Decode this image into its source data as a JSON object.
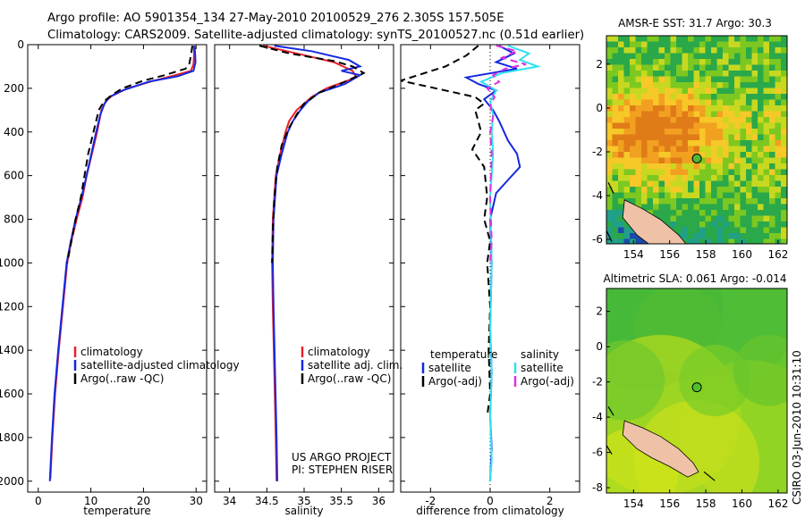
{
  "header": {
    "line1": "Argo profile: AO 5901354_134 27-May-2010 20100529_276 2.305S 157.505E",
    "line2": "Climatology: CARS2009. Satellite-adjusted climatology: synTS_20100527.nc (0.51d earlier)"
  },
  "side_caption": "CSIRO 03-Jun-2010 10:31:10",
  "colors": {
    "climatology": "#e8202a",
    "satellite": "#1428e0",
    "argo": "#000000",
    "cyan": "#30e0f0",
    "magenta": "#e030e0",
    "land": "#efc2a8"
  },
  "chart_data": [
    {
      "id": "temperature",
      "type": "line",
      "xlabel": "temperature",
      "xlim": [
        -2,
        32
      ],
      "ylim": [
        0,
        2050
      ],
      "y_inverted": true,
      "xticks": [
        0,
        10,
        20,
        30
      ],
      "yticks": [
        0,
        200,
        400,
        600,
        800,
        1000,
        1200,
        1400,
        1600,
        1800,
        2000
      ],
      "legend": [
        "climatology",
        "satellite-adjusted climatology",
        "Argo(..raw -QC)"
      ],
      "series": [
        {
          "name": "climatology",
          "color": "#e8202a",
          "dash": "",
          "points": [
            [
              29.6,
              5
            ],
            [
              29.6,
              50
            ],
            [
              29.5,
              90
            ],
            [
              29.0,
              120
            ],
            [
              26,
              140
            ],
            [
              22,
              165
            ],
            [
              17,
              200
            ],
            [
              14,
              235
            ],
            [
              12.8,
              260
            ],
            [
              12,
              300
            ],
            [
              11.2,
              400
            ],
            [
              10.2,
              500
            ],
            [
              9.2,
              600
            ],
            [
              8.4,
              700
            ],
            [
              7.3,
              800
            ],
            [
              6.3,
              900
            ],
            [
              5.5,
              1000
            ],
            [
              4.7,
              1200
            ],
            [
              3.9,
              1400
            ],
            [
              3.2,
              1600
            ],
            [
              2.7,
              1800
            ],
            [
              2.3,
              1990
            ]
          ]
        },
        {
          "name": "satellite-adjusted climatology",
          "color": "#1428e0",
          "dash": "",
          "points": [
            [
              29.7,
              5
            ],
            [
              29.8,
              40
            ],
            [
              29.9,
              80
            ],
            [
              29.5,
              120
            ],
            [
              26.5,
              145
            ],
            [
              21,
              170
            ],
            [
              16,
              210
            ],
            [
              13.5,
              240
            ],
            [
              12.6,
              270
            ],
            [
              11.8,
              320
            ],
            [
              11,
              400
            ],
            [
              10,
              510
            ],
            [
              9,
              620
            ],
            [
              8.2,
              700
            ],
            [
              7.1,
              800
            ],
            [
              6.2,
              900
            ],
            [
              5.4,
              1000
            ],
            [
              4.6,
              1200
            ],
            [
              3.8,
              1400
            ],
            [
              3.1,
              1600
            ],
            [
              2.6,
              1800
            ],
            [
              2.2,
              2000
            ]
          ]
        },
        {
          "name": "Argo(..raw -QC)",
          "color": "#000000",
          "dash": "8 5",
          "points": [
            [
              29.3,
              5
            ],
            [
              29.0,
              50
            ],
            [
              28.7,
              90
            ],
            [
              28.0,
              110
            ],
            [
              24,
              140
            ],
            [
              20,
              165
            ],
            [
              16,
              200
            ],
            [
              14,
              230
            ],
            [
              12.5,
              260
            ],
            [
              11.5,
              300
            ],
            [
              10.5,
              400
            ],
            [
              9.5,
              500
            ],
            [
              8.8,
              600
            ],
            [
              8.1,
              700
            ],
            [
              7.1,
              800
            ],
            [
              6.3,
              900
            ],
            [
              5.5,
              1000
            ]
          ]
        }
      ]
    },
    {
      "id": "salinity",
      "type": "line",
      "xlabel": "salinity",
      "xlim": [
        33.8,
        36.2
      ],
      "ylim": [
        0,
        2050
      ],
      "y_inverted": true,
      "xticks": [
        34,
        34.5,
        35,
        35.5,
        36
      ],
      "legend": [
        "climatology",
        "satellite adj. clim.",
        "Argo(..raw -QC)"
      ],
      "annotation": [
        "US ARGO PROJECT",
        "PI: STEPHEN RISER"
      ],
      "series": [
        {
          "name": "climatology",
          "color": "#e8202a",
          "dash": "",
          "points": [
            [
              34.45,
              5
            ],
            [
              34.9,
              40
            ],
            [
              35.4,
              80
            ],
            [
              35.65,
              120
            ],
            [
              35.7,
              150
            ],
            [
              35.3,
              200
            ],
            [
              35.1,
              240
            ],
            [
              35.0,
              270
            ],
            [
              34.9,
              300
            ],
            [
              34.8,
              350
            ],
            [
              34.75,
              400
            ],
            [
              34.68,
              500
            ],
            [
              34.62,
              600
            ],
            [
              34.58,
              800
            ],
            [
              34.57,
              1000
            ],
            [
              34.58,
              1200
            ],
            [
              34.6,
              1500
            ],
            [
              34.62,
              1800
            ],
            [
              34.63,
              2000
            ]
          ]
        },
        {
          "name": "satellite adj. clim.",
          "color": "#1428e0",
          "dash": "",
          "points": [
            [
              34.6,
              5
            ],
            [
              35.1,
              30
            ],
            [
              35.6,
              70
            ],
            [
              35.75,
              100
            ],
            [
              35.5,
              120
            ],
            [
              35.75,
              140
            ],
            [
              35.55,
              180
            ],
            [
              35.2,
              220
            ],
            [
              35.05,
              260
            ],
            [
              34.95,
              300
            ],
            [
              34.85,
              350
            ],
            [
              34.78,
              400
            ],
            [
              34.7,
              500
            ],
            [
              34.63,
              600
            ],
            [
              34.59,
              800
            ],
            [
              34.58,
              1000
            ],
            [
              34.59,
              1200
            ],
            [
              34.61,
              1500
            ],
            [
              34.63,
              1800
            ],
            [
              34.64,
              2000
            ]
          ]
        },
        {
          "name": "Argo(..raw -QC)",
          "color": "#000000",
          "dash": "8 5",
          "points": [
            [
              34.4,
              5
            ],
            [
              34.8,
              40
            ],
            [
              35.4,
              75
            ],
            [
              35.65,
              100
            ],
            [
              35.8,
              130
            ],
            [
              35.55,
              170
            ],
            [
              35.2,
              220
            ],
            [
              35.0,
              270
            ],
            [
              34.9,
              320
            ],
            [
              34.8,
              380
            ],
            [
              34.7,
              460
            ],
            [
              34.64,
              560
            ],
            [
              34.6,
              700
            ],
            [
              34.58,
              850
            ],
            [
              34.57,
              1000
            ]
          ]
        }
      ]
    },
    {
      "id": "difference",
      "type": "line",
      "xlabel": "difference from climatology",
      "xlim": [
        -3,
        3
      ],
      "ylim": [
        0,
        2050
      ],
      "y_inverted": true,
      "xticks": [
        -2,
        0,
        2
      ],
      "legend_left_title": "temperature",
      "legend_right_title": "salinity",
      "legend": [
        "satellite",
        "Argo(-adj)",
        "satellite",
        "Argo(-adj)"
      ],
      "series": [
        {
          "name": "satellite",
          "color": "#1428e0",
          "dash": "",
          "points": [
            [
              0.3,
              5
            ],
            [
              0.8,
              40
            ],
            [
              0.2,
              80
            ],
            [
              0.9,
              110
            ],
            [
              -0.8,
              150
            ],
            [
              -0.4,
              180
            ],
            [
              0.2,
              210
            ],
            [
              -0.2,
              250
            ],
            [
              0.1,
              300
            ],
            [
              0.3,
              350
            ],
            [
              0.6,
              440
            ],
            [
              0.9,
              500
            ],
            [
              1.0,
              560
            ],
            [
              0.6,
              620
            ],
            [
              0.2,
              680
            ],
            [
              0.0,
              800
            ],
            [
              0.05,
              1000
            ],
            [
              0.0,
              1300
            ],
            [
              0.05,
              1500
            ],
            [
              0.0,
              1700
            ],
            [
              0.05,
              1850
            ],
            [
              0.0,
              2000
            ]
          ]
        },
        {
          "name": "Argo(-adj)",
          "color": "#000000",
          "dash": "8 5",
          "points": [
            [
              -0.4,
              5
            ],
            [
              -0.8,
              50
            ],
            [
              -1.5,
              100
            ],
            [
              -3.0,
              165
            ],
            [
              -1.5,
              210
            ],
            [
              -0.5,
              240
            ],
            [
              -0.2,
              270
            ],
            [
              -0.5,
              300
            ],
            [
              -0.3,
              400
            ],
            [
              -0.6,
              480
            ],
            [
              -0.2,
              560
            ],
            [
              -0.1,
              700
            ],
            [
              -0.2,
              800
            ],
            [
              0.0,
              900
            ],
            [
              -0.1,
              1000
            ],
            [
              0.0,
              1200
            ],
            [
              -0.05,
              1400
            ],
            [
              0.0,
              1600
            ],
            [
              -0.1,
              1700
            ]
          ]
        },
        {
          "name": "satellite",
          "color": "#30e0f0",
          "dash": "",
          "points": [
            [
              0.6,
              5
            ],
            [
              1.3,
              40
            ],
            [
              1.0,
              70
            ],
            [
              1.6,
              100
            ],
            [
              0.4,
              130
            ],
            [
              -0.3,
              170
            ],
            [
              0.2,
              210
            ],
            [
              0.0,
              260
            ],
            [
              0.1,
              320
            ],
            [
              0.05,
              400
            ],
            [
              0.1,
              500
            ],
            [
              0.0,
              700
            ],
            [
              0.05,
              1000
            ],
            [
              0.0,
              1300
            ],
            [
              0.05,
              1500
            ],
            [
              0.0,
              1700
            ],
            [
              0.05,
              1900
            ],
            [
              0.0,
              2000
            ]
          ]
        },
        {
          "name": "Argo(-adj)",
          "color": "#e030e0",
          "dash": "8 5",
          "points": [
            [
              0.2,
              5
            ],
            [
              0.9,
              30
            ],
            [
              0.4,
              60
            ],
            [
              1.2,
              90
            ],
            [
              0.5,
              110
            ],
            [
              0.1,
              140
            ],
            [
              0.3,
              170
            ],
            [
              -0.1,
              200
            ],
            [
              0.15,
              240
            ],
            [
              0.0,
              280
            ],
            [
              0.1,
              330
            ],
            [
              0.0,
              400
            ],
            [
              0.05,
              500
            ],
            [
              0.0,
              700
            ],
            [
              0.05,
              900
            ],
            [
              0.0,
              1000
            ]
          ]
        }
      ]
    },
    {
      "id": "sst_map",
      "type": "heatmap",
      "title": "AMSR-E SST: 31.7 Argo: 30.3",
      "xlim": [
        152.5,
        162.5
      ],
      "ylim": [
        -6.2,
        3.3
      ],
      "xticks": [
        154,
        156,
        158,
        160,
        162
      ],
      "yticks": [
        -6,
        -4,
        -2,
        0,
        2
      ],
      "marker": {
        "lon": 157.505,
        "lat": -2.305
      }
    },
    {
      "id": "sla_map",
      "type": "heatmap",
      "title": "Altimetric SLA: 0.061 Argo: -0.014",
      "xlim": [
        152.5,
        162.5
      ],
      "ylim": [
        -8.3,
        3.3
      ],
      "xticks": [
        154,
        156,
        158,
        160,
        162
      ],
      "yticks": [
        -8,
        -6,
        -4,
        -2,
        0,
        2
      ],
      "marker": {
        "lon": 157.505,
        "lat": -2.305
      }
    }
  ]
}
